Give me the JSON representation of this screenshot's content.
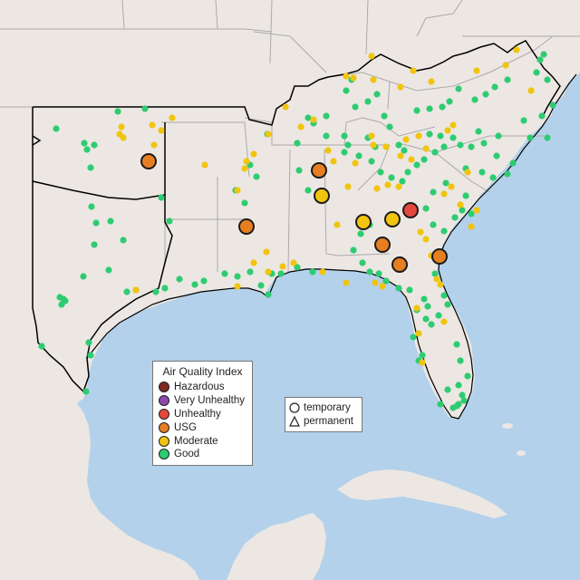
{
  "legend": {
    "title": "Air Quality Index",
    "categories": [
      {
        "label": "Hazardous",
        "color": "#7e2a23"
      },
      {
        "label": "Very Unhealthy",
        "color": "#8e47ad"
      },
      {
        "label": "Unhealthy",
        "color": "#e4473b"
      },
      {
        "label": "USG",
        "color": "#e67e22"
      },
      {
        "label": "Moderate",
        "color": "#f1c40f"
      },
      {
        "label": "Good",
        "color": "#2ecc71"
      }
    ]
  },
  "site_type_legend": {
    "temporary": "temporary",
    "permanent": "permanent"
  },
  "colors": {
    "water": "#b3d1ea",
    "land": "#ece7e3",
    "border": "#aaaaaa",
    "region_outline": "#000000"
  }
}
